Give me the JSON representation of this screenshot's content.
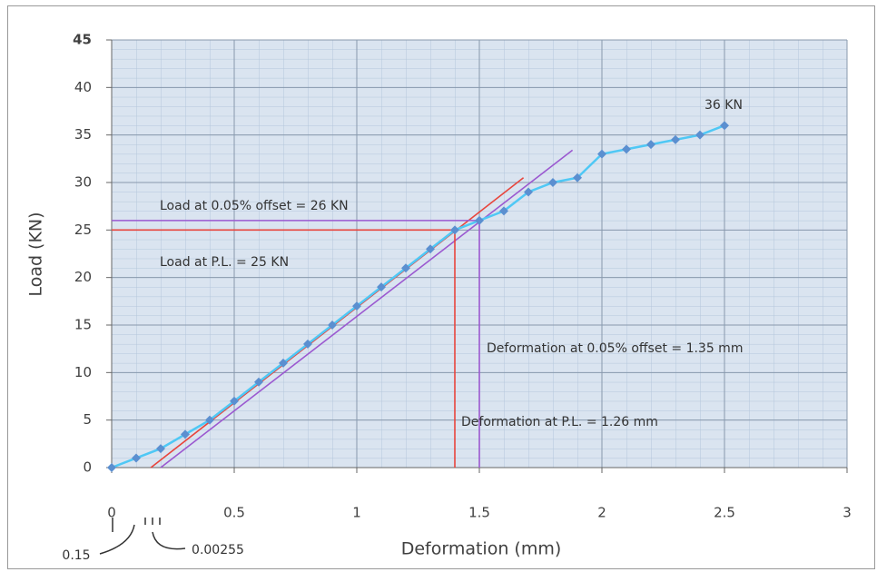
{
  "chart_data": {
    "type": "line",
    "x_label": "Deformation  (mm)",
    "y_label": "Load (KN)",
    "x": [
      0,
      0.1,
      0.2,
      0.3,
      0.4,
      0.5,
      0.6,
      0.7,
      0.8,
      0.9,
      1.0,
      1.1,
      1.2,
      1.3,
      1.4,
      1.5,
      1.6,
      1.7,
      1.8,
      1.9,
      2.0,
      2.1,
      2.2,
      2.3,
      2.4,
      2.5
    ],
    "series": [
      {
        "color": "#4fc8f5",
        "marker_color": "#5b8fd0",
        "values": [
          0,
          1,
          2,
          3.5,
          5,
          7,
          9,
          11,
          13,
          15,
          17,
          19,
          21,
          23,
          25,
          26,
          27,
          29,
          30,
          30.5,
          33,
          33.5,
          34,
          34.5,
          35,
          36
        ]
      }
    ],
    "reference_lines": [
      {
        "color": "#e8453c",
        "x": [
          0.16,
          1.68
        ],
        "y": [
          0,
          30.5
        ]
      },
      {
        "color": "#9b59d0",
        "x": [
          0.2,
          1.88
        ],
        "y": [
          0,
          33.4
        ]
      },
      {
        "color": "#e8453c",
        "x": [
          0,
          1.4,
          1.4
        ],
        "y": [
          25,
          25,
          0
        ]
      },
      {
        "color": "#9b59d0",
        "x": [
          0,
          1.5,
          1.5
        ],
        "y": [
          26,
          26,
          0
        ]
      }
    ],
    "annotations": [
      "Load at 0.05% offset =  26  KN",
      "Load at  P.L.  =  25  KN",
      "Deformation at 0.05% offset  =  1.35 mm",
      "Deformation at  P.L.  =  1.26  mm",
      "36  KN",
      "0.15",
      "0.00255"
    ],
    "xlim": [
      0,
      3
    ],
    "xticks": [
      0,
      0.5,
      1,
      1.5,
      2,
      2.5,
      3
    ],
    "ylim": [
      0,
      45
    ],
    "yticks": [
      0,
      5,
      10,
      15,
      20,
      25,
      30,
      35,
      40,
      45
    ],
    "grid": true
  }
}
